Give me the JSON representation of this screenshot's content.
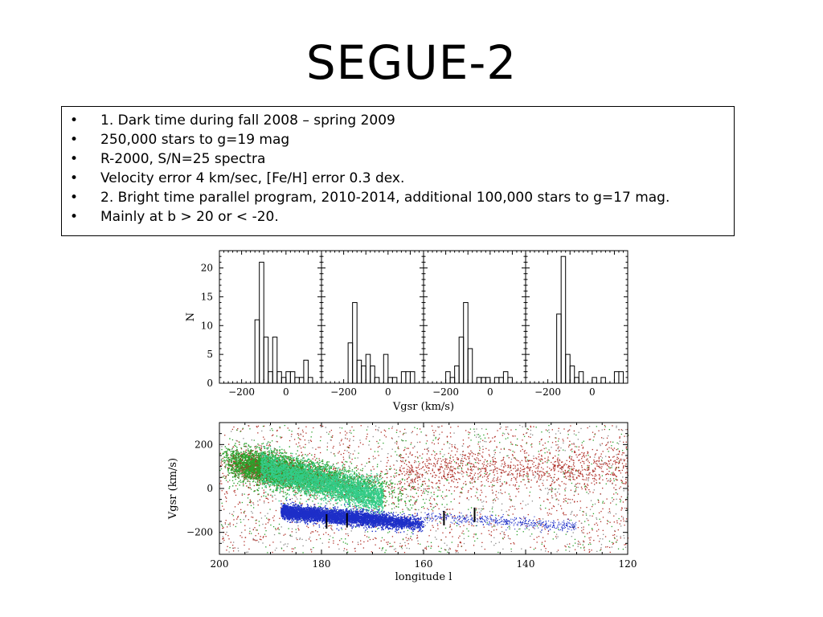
{
  "slide": {
    "title": "SEGUE-2",
    "bullets": [
      "1. Dark time during fall 2008 – spring 2009",
      "250,000 stars to g=19 mag",
      "R-2000, S/N=25 spectra",
      "Velocity error 4 km/sec, [Fe/H] error 0.3 dex.",
      "2. Bright time parallel program, 2010-2014, additional 100,000 stars to g=17 mag.",
      "Mainly at b > 20 or < -20."
    ],
    "bullet_marker": "•"
  },
  "chart_data": [
    {
      "type": "histogram",
      "panels": 4,
      "xlabel": "Vgsr (km/s)",
      "ylabel": "N",
      "xlim": [
        -300,
        160
      ],
      "ylim": [
        0,
        23
      ],
      "bin_width": 20,
      "y_ticks": [
        0,
        5,
        10,
        15,
        20
      ],
      "x_ticks": [
        -200,
        0
      ],
      "series": [
        {
          "bin_starts": [
            -140,
            -120,
            -100,
            -80,
            -60,
            -40,
            -20,
            0,
            20,
            40,
            60,
            80,
            100,
            120
          ],
          "values": [
            11,
            21,
            8,
            2,
            8,
            2,
            1,
            2,
            2,
            1,
            1,
            4,
            1,
            0
          ]
        },
        {
          "bin_starts": [
            -180,
            -160,
            -140,
            -120,
            -100,
            -80,
            -60,
            -40,
            -20,
            0,
            20,
            40,
            60,
            80,
            100,
            120
          ],
          "values": [
            7,
            14,
            4,
            3,
            5,
            3,
            1,
            0,
            5,
            1,
            1,
            0,
            2,
            2,
            2,
            0
          ]
        },
        {
          "bin_starts": [
            -200,
            -180,
            -160,
            -140,
            -120,
            -100,
            -80,
            -60,
            -40,
            -20,
            0,
            20,
            40,
            60,
            80,
            100,
            120
          ],
          "values": [
            2,
            1,
            3,
            8,
            14,
            6,
            0,
            1,
            1,
            1,
            0,
            1,
            1,
            2,
            1,
            0,
            0
          ]
        },
        {
          "bin_starts": [
            -160,
            -140,
            -120,
            -100,
            -80,
            -60,
            -40,
            -20,
            0,
            20,
            40,
            60,
            80,
            100,
            120
          ],
          "values": [
            12,
            22,
            5,
            3,
            1,
            2,
            0,
            0,
            1,
            0,
            1,
            0,
            0,
            2,
            2
          ]
        }
      ]
    },
    {
      "type": "scatter",
      "xlabel": "longitude l",
      "ylabel": "Vgsr (km/s)",
      "xlim": [
        200,
        120
      ],
      "ylim": [
        -300,
        300
      ],
      "x_ticks": [
        200,
        180,
        160,
        140,
        120
      ],
      "y_ticks": [
        200,
        0,
        -200
      ],
      "groups": [
        {
          "color": "#b03028",
          "region": "field",
          "l_range": [
            200,
            120
          ],
          "v_range": [
            -290,
            290
          ]
        },
        {
          "color": "#2aa02a",
          "region": "disk",
          "l_range": [
            200,
            170
          ],
          "v_range": [
            -20,
            150
          ]
        },
        {
          "color": "#33cc88",
          "region": "disk",
          "l_range": [
            195,
            165
          ],
          "v_range": [
            -60,
            80
          ]
        },
        {
          "color": "#1e2fc8",
          "region": "stream",
          "l_range": [
            185,
            160
          ],
          "v_range": [
            -160,
            -60
          ]
        }
      ],
      "markers": [
        {
          "l": 179,
          "v": -150
        },
        {
          "l": 175,
          "v": -145
        },
        {
          "l": 156,
          "v": -135
        },
        {
          "l": 150,
          "v": -120
        }
      ]
    }
  ]
}
